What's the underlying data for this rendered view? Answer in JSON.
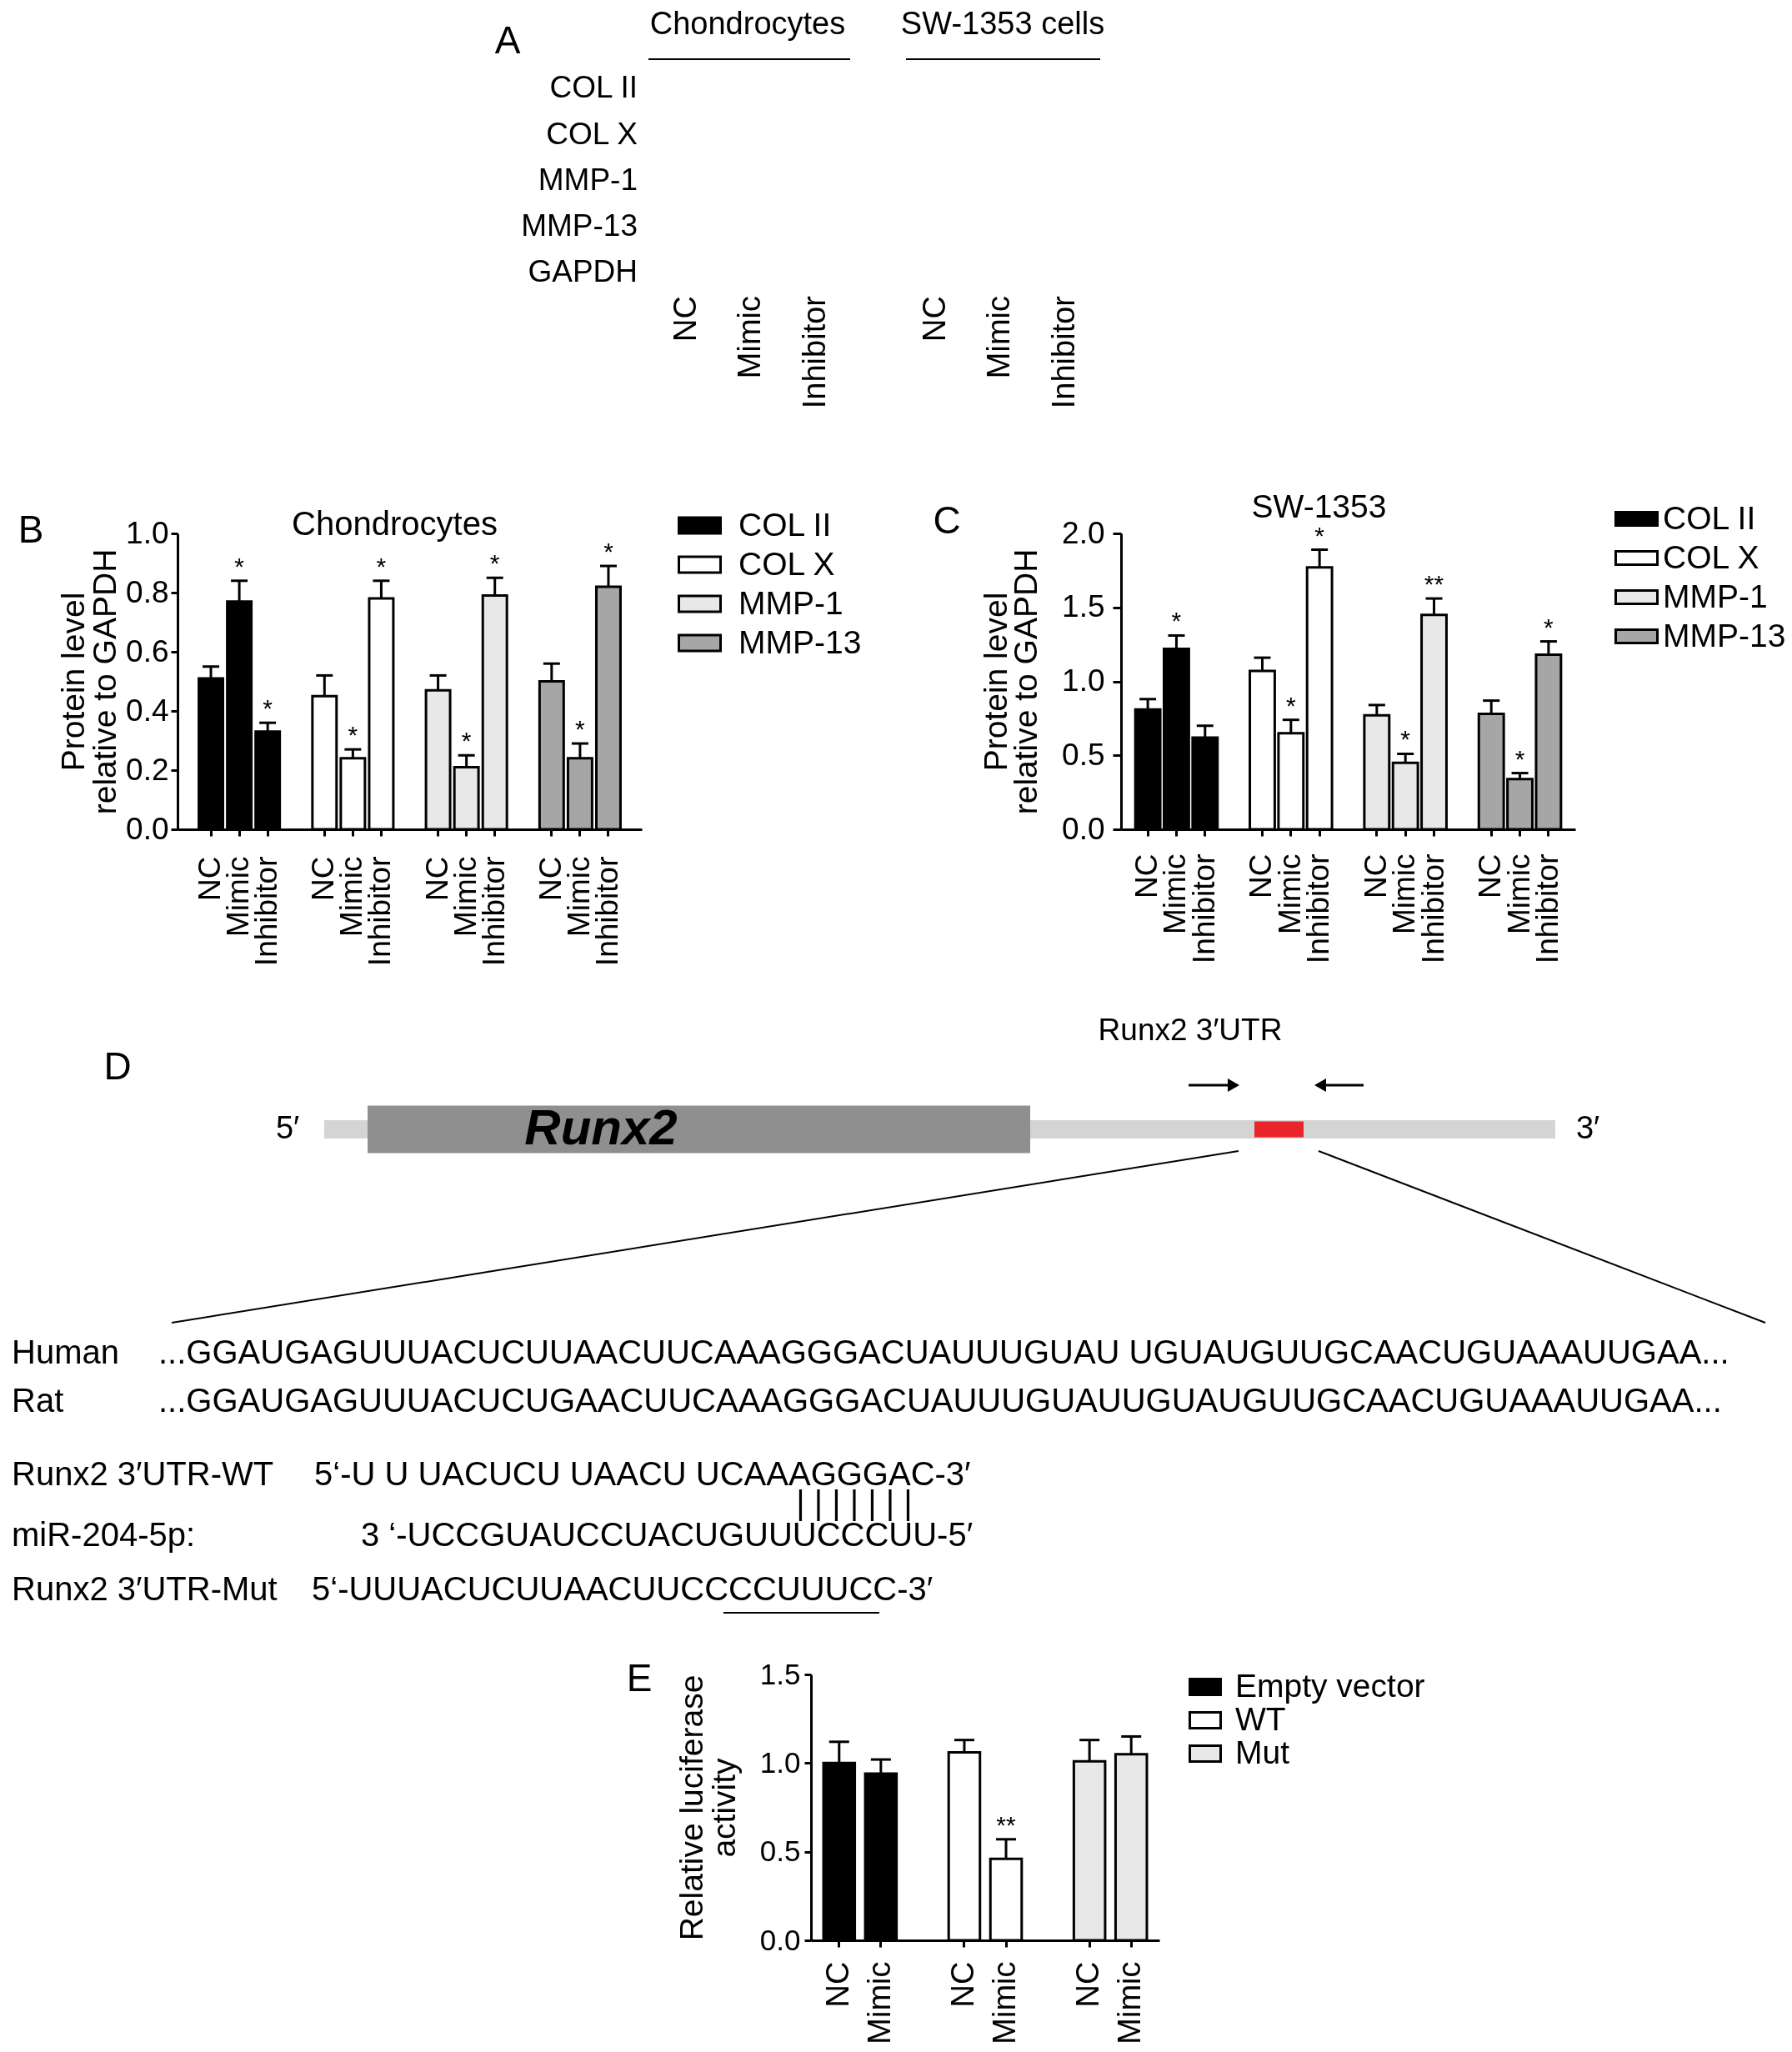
{
  "chart_data": [
    {
      "type": "other",
      "annotations": [
        "A",
        "Chondrocytes",
        "SW-1353 cells",
        "COL II",
        "COL X",
        "MMP-1",
        "MMP-13",
        "GAPDH",
        "NC",
        "Mimic",
        "Inhibitor",
        "NC",
        "Mimic",
        "Inhibitor"
      ]
    },
    {
      "type": "bar",
      "title": "Chondrocytes",
      "ylabel": "Protein level\nrelative to GAPDH",
      "annotations": [
        "B"
      ],
      "categories": [
        "NC",
        "Mimic",
        "Inhibitor",
        "NC",
        "Mimic",
        "Inhibitor",
        "NC",
        "Mimic",
        "Inhibitor",
        "NC",
        "Mimic",
        "Inhibitor"
      ],
      "series": [
        {
          "name": "COL II",
          "color": "#000000",
          "values": [
            0.51,
            0.77,
            0.33,
            null,
            null,
            null,
            null,
            null,
            null,
            null,
            null,
            null
          ],
          "errors": [
            [
              0.51,
              0.55
            ],
            [
              0.77,
              0.84
            ],
            [
              0.33,
              0.36
            ],
            null,
            null,
            null,
            null,
            null,
            null,
            null,
            null,
            null
          ],
          "value_labels": [
            null,
            "*",
            "*",
            null,
            null,
            null,
            null,
            null,
            null,
            null,
            null,
            null
          ]
        },
        {
          "name": "COL X",
          "color": "#ffffff",
          "values": [
            null,
            null,
            null,
            0.45,
            0.24,
            0.78,
            null,
            null,
            null,
            null,
            null,
            null
          ],
          "errors": [
            null,
            null,
            null,
            [
              0.45,
              0.52
            ],
            [
              0.24,
              0.27
            ],
            [
              0.78,
              0.84
            ],
            null,
            null,
            null,
            null,
            null,
            null
          ],
          "value_labels": [
            null,
            null,
            null,
            null,
            "*",
            "*",
            null,
            null,
            null,
            null,
            null,
            null
          ]
        },
        {
          "name": "MMP-1",
          "color": "#e8e8e8",
          "values": [
            null,
            null,
            null,
            null,
            null,
            null,
            0.47,
            0.21,
            0.79,
            null,
            null,
            null
          ],
          "errors": [
            null,
            null,
            null,
            null,
            null,
            null,
            [
              0.47,
              0.52
            ],
            [
              0.21,
              0.25
            ],
            [
              0.79,
              0.85
            ],
            null,
            null,
            null
          ],
          "value_labels": [
            null,
            null,
            null,
            null,
            null,
            null,
            null,
            "*",
            "*",
            null,
            null,
            null
          ]
        },
        {
          "name": "MMP-13",
          "color": "#a6a6a6",
          "values": [
            null,
            null,
            null,
            null,
            null,
            null,
            null,
            null,
            null,
            0.5,
            0.24,
            0.82
          ],
          "errors": [
            null,
            null,
            null,
            null,
            null,
            null,
            null,
            null,
            null,
            [
              0.5,
              0.56
            ],
            [
              0.24,
              0.29
            ],
            [
              0.82,
              0.89
            ]
          ],
          "value_labels": [
            null,
            null,
            null,
            null,
            null,
            null,
            null,
            null,
            null,
            null,
            "*",
            "*"
          ]
        }
      ],
      "ylim": [
        0,
        1
      ],
      "yticks": [
        {
          "value": 0,
          "label": "0.0"
        },
        0.2,
        0.4,
        0.6,
        0.8,
        {
          "value": 1,
          "label": "1.0"
        }
      ],
      "legend": "right"
    },
    {
      "type": "bar",
      "title": "SW-1353",
      "ylabel": "Protein level\nrelative to GAPDH",
      "annotations": [
        "C"
      ],
      "categories": [
        "NC",
        "Mimic",
        "Inhibitor",
        "NC",
        "Mimic",
        "Inhibitor",
        "NC",
        "Mimic",
        "Inhibitor",
        "NC",
        "Mimic",
        "Inhibitor"
      ],
      "series": [
        {
          "name": "COL II",
          "color": "#000000",
          "values": [
            0.81,
            1.22,
            0.62,
            null,
            null,
            null,
            null,
            null,
            null,
            null,
            null,
            null
          ],
          "errors": [
            [
              0.81,
              0.88
            ],
            [
              1.22,
              1.31
            ],
            [
              0.62,
              0.7
            ],
            null,
            null,
            null,
            null,
            null,
            null,
            null,
            null,
            null
          ],
          "value_labels": [
            null,
            "*",
            null,
            null,
            null,
            null,
            null,
            null,
            null,
            null,
            null,
            null
          ]
        },
        {
          "name": "COL X",
          "color": "#ffffff",
          "values": [
            null,
            null,
            null,
            1.07,
            0.65,
            1.77,
            null,
            null,
            null,
            null,
            null,
            null
          ],
          "errors": [
            null,
            null,
            null,
            [
              1.07,
              1.16
            ],
            [
              0.65,
              0.74
            ],
            [
              1.77,
              1.89
            ],
            null,
            null,
            null,
            null,
            null,
            null
          ],
          "value_labels": [
            null,
            null,
            null,
            null,
            "*",
            "*",
            null,
            null,
            null,
            null,
            null,
            null
          ]
        },
        {
          "name": "MMP-1",
          "color": "#e8e8e8",
          "values": [
            null,
            null,
            null,
            null,
            null,
            null,
            0.77,
            0.45,
            1.45,
            null,
            null,
            null
          ],
          "errors": [
            null,
            null,
            null,
            null,
            null,
            null,
            [
              0.77,
              0.84
            ],
            [
              0.45,
              0.51
            ],
            [
              1.45,
              1.56
            ],
            null,
            null,
            null
          ],
          "value_labels": [
            null,
            null,
            null,
            null,
            null,
            null,
            null,
            "*",
            "**",
            null,
            null,
            null
          ]
        },
        {
          "name": "MMP-13",
          "color": "#a6a6a6",
          "values": [
            null,
            null,
            null,
            null,
            null,
            null,
            null,
            null,
            null,
            0.78,
            0.34,
            1.18
          ],
          "errors": [
            null,
            null,
            null,
            null,
            null,
            null,
            null,
            null,
            null,
            [
              0.78,
              0.87
            ],
            [
              0.34,
              0.38
            ],
            [
              1.18,
              1.27
            ]
          ],
          "value_labels": [
            null,
            null,
            null,
            null,
            null,
            null,
            null,
            null,
            null,
            null,
            "*",
            "*"
          ]
        }
      ],
      "ylim": [
        0,
        2
      ],
      "yticks": [
        {
          "value": 0,
          "label": "0.0"
        },
        0.5,
        {
          "value": 1,
          "label": "1.0"
        },
        1.5,
        {
          "value": 2,
          "label": "2.0"
        }
      ],
      "legend": "right"
    },
    {
      "type": "other",
      "annotations": [
        "D",
        "Runx2 3′UTR",
        "5′",
        "3′",
        "Runx2",
        "Human",
        "...GGAUGAGUUUACUCUUAACUUCAAAGGGACUAUUUGUAU UGUAUGUUGCAACUGUAAAUUGAA...",
        "Rat",
        "...GGAUGAGUUUACUCUGAACUUCAAAGGGACUAUUUGUAUUGUAUGUUGCAACUGUAAAUUGAA...",
        "Runx2 3′UTR-WT",
        "5‘-U U UACUCU UAACU UCAAAGGGAC-3′",
        "| | | | | | |",
        "miR-204-5p:",
        "3 ‘-UCCGUAUCCUACUGUUUCCCUU-5′",
        "Runx2 3′UTR-Mut",
        "5‘-UUUACUCUUAACUUCCCCUUUCC-3′"
      ]
    },
    {
      "type": "bar",
      "ylabel": "Relative luciferase\nactivity",
      "annotations": [
        "E"
      ],
      "categories": [
        "NC",
        "Mimic",
        "NC",
        "Mimic",
        "NC",
        "Mimic"
      ],
      "series": [
        {
          "name": "Empty vector",
          "color": "#000000",
          "values": [
            1.0,
            0.94,
            null,
            null,
            null,
            null
          ],
          "errors": [
            [
              1.0,
              1.12
            ],
            [
              0.94,
              1.02
            ],
            null,
            null,
            null,
            null
          ]
        },
        {
          "name": "WT",
          "color": "#ffffff",
          "values": [
            null,
            null,
            1.06,
            0.46,
            null,
            null
          ],
          "errors": [
            null,
            null,
            [
              1.06,
              1.13
            ],
            [
              0.46,
              0.57
            ],
            null,
            null
          ],
          "value_labels": [
            null,
            null,
            null,
            "**",
            null,
            null
          ]
        },
        {
          "name": "Mut",
          "color": "#e8e8e8",
          "values": [
            null,
            null,
            null,
            null,
            1.01,
            1.05
          ],
          "errors": [
            null,
            null,
            null,
            null,
            [
              1.01,
              1.13
            ],
            [
              1.05,
              1.15
            ]
          ]
        }
      ],
      "ylim": [
        0,
        1.5
      ],
      "yticks": [
        {
          "value": 0,
          "label": "0.0"
        },
        0.5,
        {
          "value": 1,
          "label": "1.0"
        },
        1.5
      ],
      "legend": "right"
    }
  ]
}
